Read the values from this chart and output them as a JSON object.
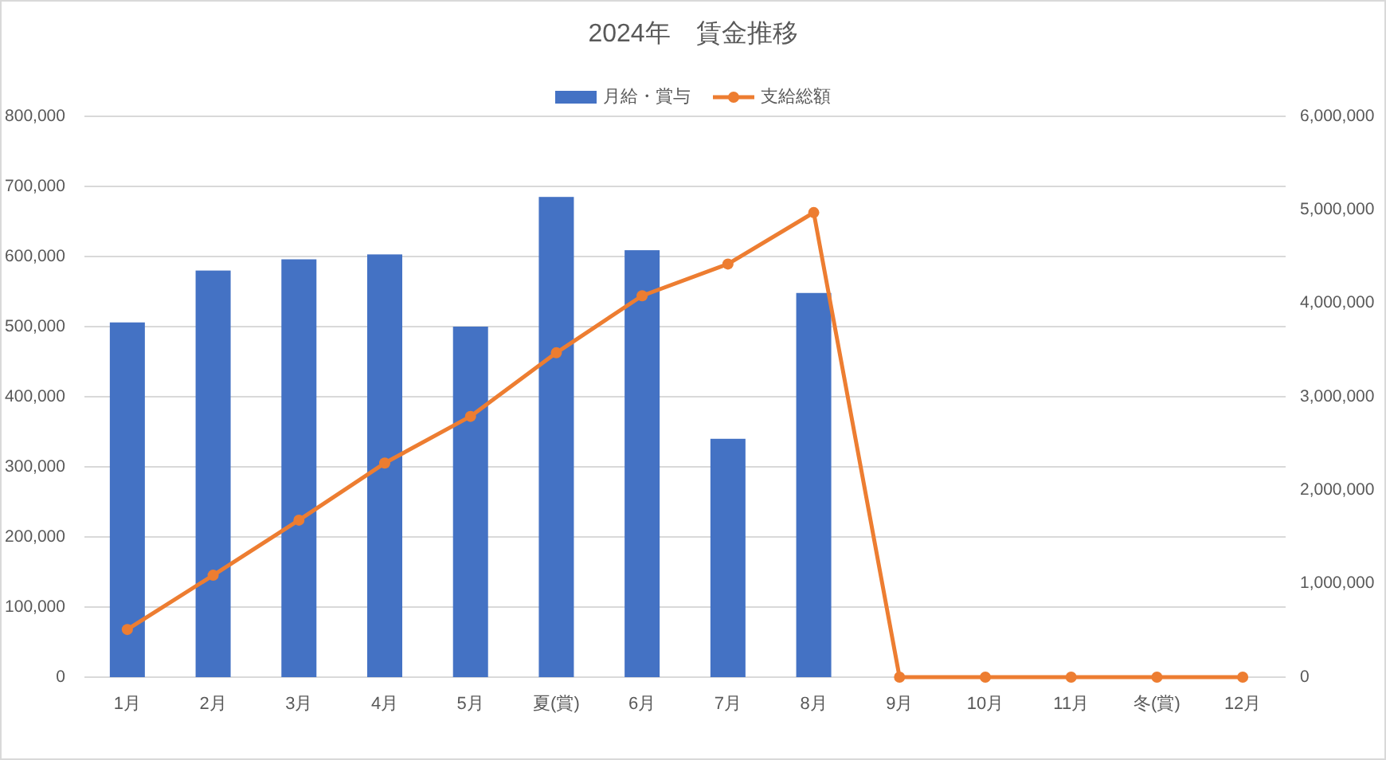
{
  "chart_data": {
    "type": "bar",
    "title": "2024年　賃金推移",
    "categories": [
      "1月",
      "2月",
      "3月",
      "4月",
      "5月",
      "夏(賞)",
      "6月",
      "7月",
      "8月",
      "9月",
      "10月",
      "11月",
      "冬(賞)",
      "12月"
    ],
    "series": [
      {
        "name": "月給・賞与",
        "color": "#4472c4",
        "values": [
          506000,
          580000,
          596000,
          603000,
          500000,
          685000,
          609000,
          340000,
          548000,
          null,
          null,
          null,
          null,
          null
        ]
      },
      {
        "name": "支給総額",
        "type": "line",
        "axis": "y2",
        "color": "#ed7d31",
        "marker": "circle",
        "values": [
          510000,
          1090000,
          1680000,
          2290000,
          2790000,
          3470000,
          4080000,
          4420000,
          4970000,
          0,
          0,
          0,
          0,
          0
        ]
      }
    ],
    "ylim": [
      0,
      800000
    ],
    "yticks": [
      {
        "value": 0,
        "label": "0"
      },
      {
        "value": 100000,
        "label": "100,000"
      },
      {
        "value": 200000,
        "label": "200,000"
      },
      {
        "value": 300000,
        "label": "300,000"
      },
      {
        "value": 400000,
        "label": "400,000"
      },
      {
        "value": 500000,
        "label": "500,000"
      },
      {
        "value": 600000,
        "label": "600,000"
      },
      {
        "value": 700000,
        "label": "700,000"
      },
      {
        "value": 800000,
        "label": "800,000"
      }
    ],
    "y2lim": [
      0,
      6000000
    ],
    "y2ticks": [
      {
        "value": 0,
        "label": "0"
      },
      {
        "value": 1000000,
        "label": "1,000,000"
      },
      {
        "value": 2000000,
        "label": "2,000,000"
      },
      {
        "value": 3000000,
        "label": "3,000,000"
      },
      {
        "value": 4000000,
        "label": "4,000,000"
      },
      {
        "value": 5000000,
        "label": "5,000,000"
      },
      {
        "value": 6000000,
        "label": "6,000,000"
      }
    ],
    "grid": "y",
    "legend": "top"
  }
}
